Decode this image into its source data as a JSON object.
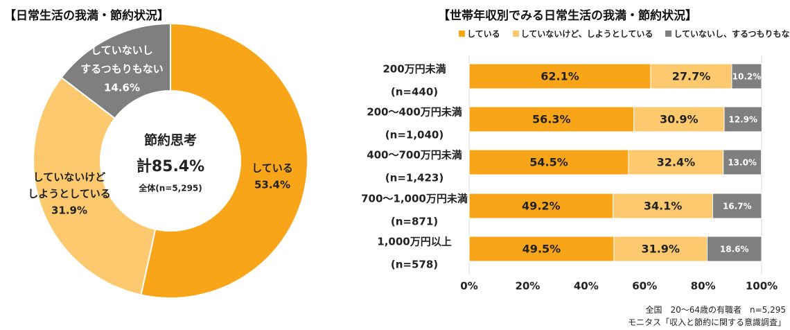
{
  "donut": {
    "title": "【日常生活の我満・節約状況】",
    "center": {
      "line1": "節約思考",
      "line2": "計85.4%",
      "line3": "全体(n=5,295)"
    },
    "slice_labels": [
      {
        "lines": [
          "している",
          "53.4%"
        ]
      },
      {
        "lines": [
          "していないけど",
          "しようとしている",
          "31.9%"
        ]
      },
      {
        "lines": [
          "していないし",
          "するつもりもない",
          "14.6%"
        ]
      }
    ]
  },
  "bars": {
    "title": "【世帯年収別でみる日常生活の我満・節約状況】",
    "rows": [
      {
        "label": "200万円未満",
        "n": "(n=440)"
      },
      {
        "label": "200～400万円未満",
        "n": "(n=1,040)"
      },
      {
        "label": "400～700万円未満",
        "n": "(n=1,423)"
      },
      {
        "label": "700～1,000万円未満",
        "n": "(n=871)"
      },
      {
        "label": "1,000万円以上",
        "n": "(n=578)"
      }
    ]
  },
  "colors": {
    "doing": "#F9A51A",
    "trying": "#FCC96E",
    "not": "#7F7F7F",
    "axis": "#D9D9D9"
  },
  "source": {
    "line1": "全国　20～64歳の有職者　n=5,295",
    "line2": "モニタス「収入と節約に関する意識調査」"
  },
  "chart_data": [
    {
      "type": "pie",
      "title": "【日常生活の我満・節約状況】",
      "categories": [
        "している",
        "していないけど、しようとしている",
        "していないし、するつもりもない"
      ],
      "values": [
        53.4,
        31.9,
        14.6
      ],
      "unit": "%",
      "donut": true,
      "total_label": "計85.4%",
      "n": "全体(n=5,295)"
    },
    {
      "type": "bar",
      "orientation": "horizontal",
      "stacked": true,
      "title": "【世帯年収別でみる日常生活の我満・節約状況】",
      "categories": [
        "200万円未満",
        "200～400万円未満",
        "400～700万円未満",
        "700～1,000万円未満",
        "1,000万円以上"
      ],
      "series": [
        {
          "name": "している",
          "values": [
            62.1,
            56.3,
            54.5,
            49.2,
            49.5
          ]
        },
        {
          "name": "していないけど、しようとしている",
          "values": [
            27.7,
            30.9,
            32.4,
            34.1,
            31.9
          ]
        },
        {
          "name": "していないし、するつもりもない",
          "values": [
            10.2,
            12.9,
            13.0,
            16.7,
            18.6
          ]
        }
      ],
      "xlim": [
        0,
        100
      ],
      "xticks": [
        "0%",
        "20%",
        "40%",
        "60%",
        "80%",
        "100%"
      ],
      "legend": "top"
    }
  ]
}
